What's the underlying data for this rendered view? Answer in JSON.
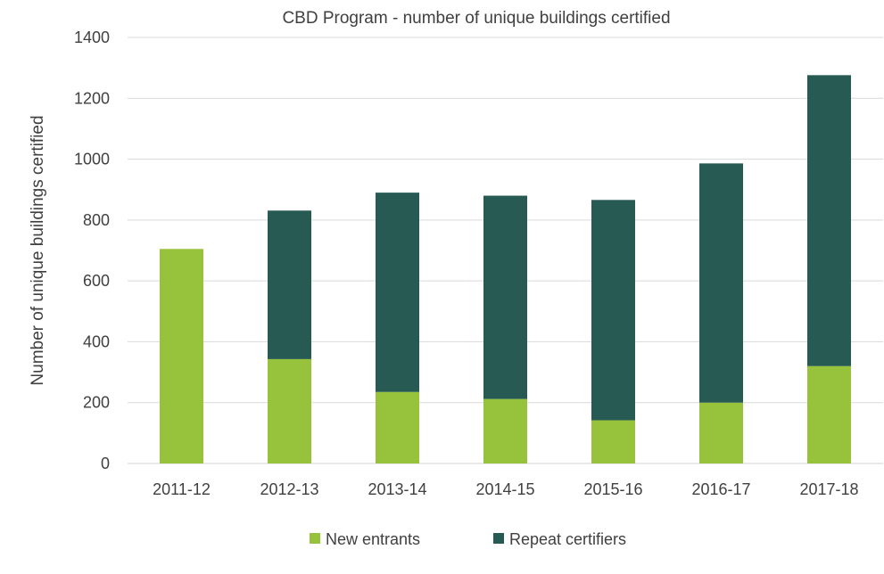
{
  "chart_data": {
    "type": "bar",
    "stacked": true,
    "title": "CBD Program - number of unique buildings certified",
    "xlabel": "",
    "ylabel": "Number of unique buildings certified",
    "ylim": [
      0,
      1400
    ],
    "yticks": [
      0,
      200,
      400,
      600,
      800,
      1000,
      1200,
      1400
    ],
    "grid": true,
    "legend_position": "bottom",
    "categories": [
      "2011-12",
      "2012-13",
      "2013-14",
      "2014-15",
      "2015-16",
      "2016-17",
      "2017-18"
    ],
    "series": [
      {
        "name": "New entrants",
        "color": "#97c23c",
        "values": [
          705,
          343,
          235,
          212,
          142,
          200,
          320
        ]
      },
      {
        "name": "Repeat certifiers",
        "color": "#275a53",
        "values": [
          0,
          488,
          655,
          668,
          724,
          786,
          956
        ]
      }
    ]
  }
}
